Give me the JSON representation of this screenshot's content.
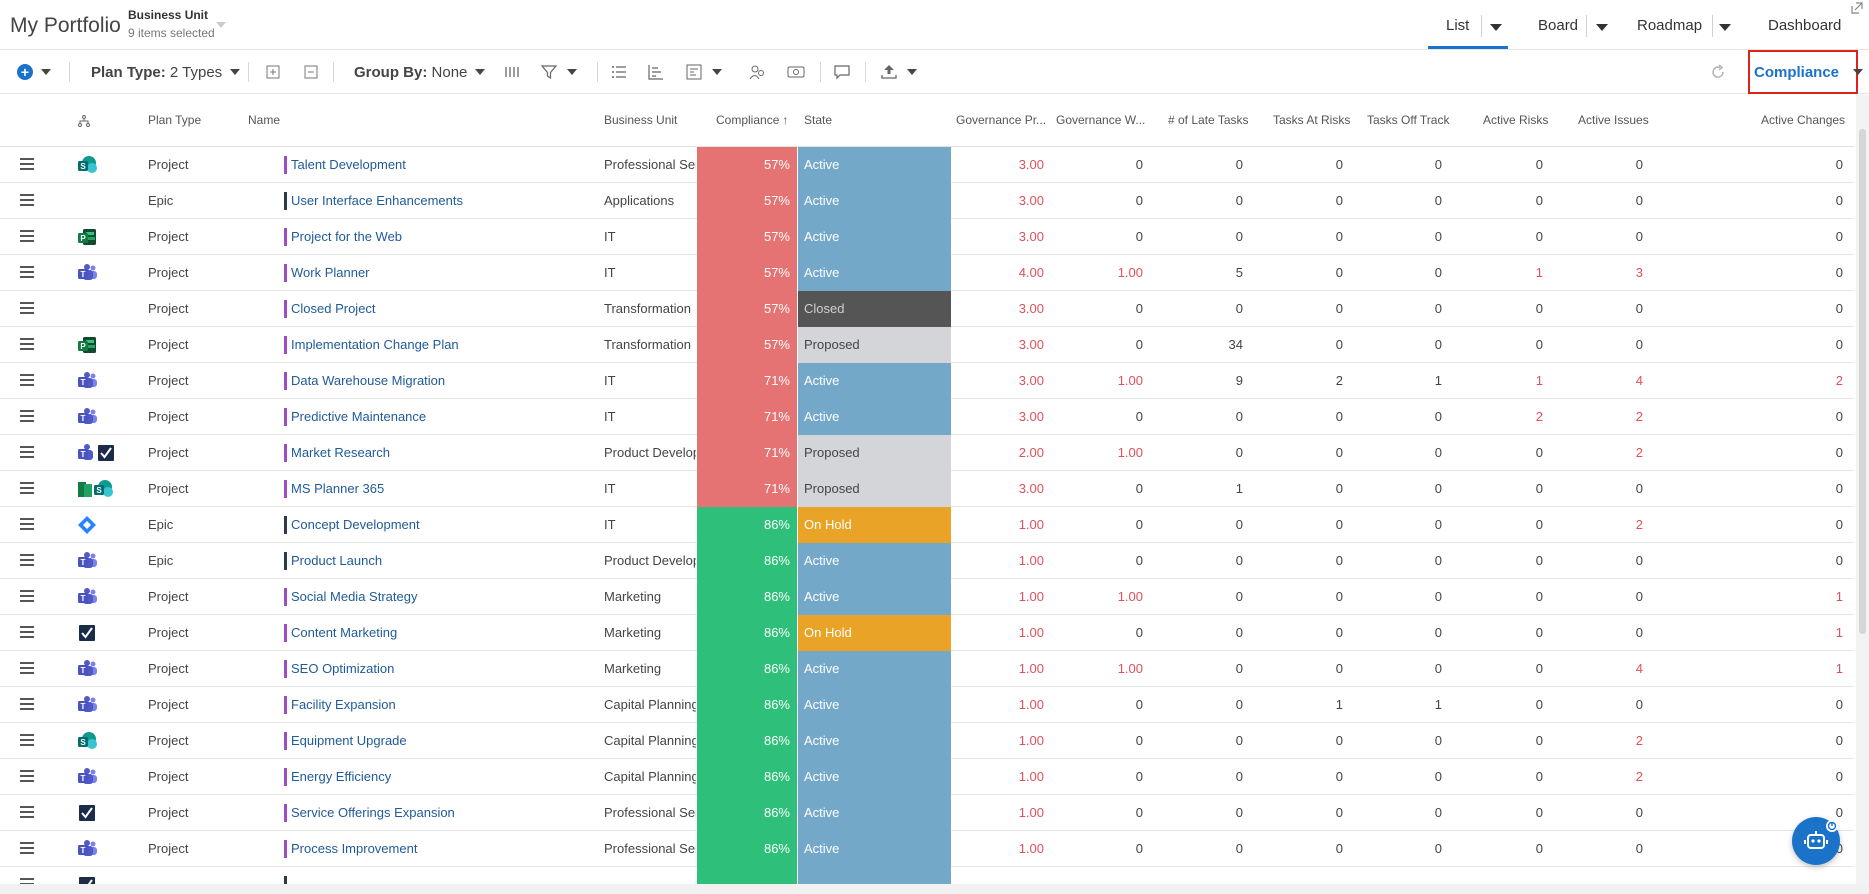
{
  "header": {
    "app_title": "My Portfolio",
    "business_unit_title": "Business Unit",
    "business_unit_sub": "9 items selected",
    "tabs": [
      {
        "label": "List"
      },
      {
        "label": "Board"
      },
      {
        "label": "Roadmap"
      },
      {
        "label": "Dashboard"
      }
    ]
  },
  "toolbar": {
    "plan_type_label": "Plan Type:",
    "plan_type_value": "2 Types",
    "group_by_label": "Group By:",
    "group_by_value": "None",
    "compliance_label": "Compliance"
  },
  "columns": {
    "plan_type": "Plan Type",
    "name": "Name",
    "business_unit": "Business Unit",
    "compliance": "Compliance",
    "state": "State",
    "gov_pr": "Governance Pr...",
    "gov_w": "Governance W...",
    "late_tasks": "# of Late Tasks",
    "tasks_at_risks": "Tasks At Risks",
    "tasks_off_track": "Tasks Off Track",
    "active_risks": "Active Risks",
    "active_issues": "Active Issues",
    "active_changes": "Active Changes"
  },
  "colors": {
    "compliance_low": "#e57373",
    "compliance_high": "#2ebf7a",
    "state_active": "#74a8c9",
    "state_closed": "#555555",
    "state_proposed": "#d3d5d9",
    "state_onhold": "#e9a326",
    "accent": "#1a73c8",
    "warn_red": "#e0505a"
  },
  "rows": [
    {
      "icon": "sharepoint-icon",
      "plan_type": "Project",
      "name": "Talent Development",
      "bar": "purple",
      "bu": "Professional Serv",
      "comp": "57%",
      "comp_level": "low",
      "state": "Active",
      "state_key": "active",
      "gov_pr": "3.00",
      "gov_w": "0",
      "late": "0",
      "at_risk": "0",
      "off_track": "0",
      "risks": "0",
      "issues": "0",
      "changes": "0"
    },
    {
      "icon": "",
      "plan_type": "Epic",
      "name": "User Interface Enhancements",
      "bar": "dark",
      "bu": "Applications",
      "comp": "57%",
      "comp_level": "low",
      "state": "Active",
      "state_key": "active",
      "gov_pr": "3.00",
      "gov_w": "0",
      "late": "0",
      "at_risk": "0",
      "off_track": "0",
      "risks": "0",
      "issues": "0",
      "changes": "0"
    },
    {
      "icon": "project-icon",
      "plan_type": "Project",
      "name": "Project for the Web",
      "bar": "purple",
      "bu": "IT",
      "comp": "57%",
      "comp_level": "low",
      "state": "Active",
      "state_key": "active",
      "gov_pr": "3.00",
      "gov_w": "0",
      "late": "0",
      "at_risk": "0",
      "off_track": "0",
      "risks": "0",
      "issues": "0",
      "changes": "0"
    },
    {
      "icon": "teams-icon",
      "plan_type": "Project",
      "name": "Work Planner",
      "bar": "purple",
      "bu": "IT",
      "comp": "57%",
      "comp_level": "low",
      "state": "Active",
      "state_key": "active",
      "gov_pr": "4.00",
      "gov_w": "1.00",
      "late": "5",
      "at_risk": "0",
      "off_track": "0",
      "risks": "1",
      "issues": "3",
      "changes": "0"
    },
    {
      "icon": "",
      "plan_type": "Project",
      "name": "Closed Project",
      "bar": "purple",
      "bu": "Transformation",
      "comp": "57%",
      "comp_level": "low",
      "state": "Closed",
      "state_key": "closed",
      "gov_pr": "3.00",
      "gov_w": "0",
      "late": "0",
      "at_risk": "0",
      "off_track": "0",
      "risks": "0",
      "issues": "0",
      "changes": "0"
    },
    {
      "icon": "project-icon",
      "plan_type": "Project",
      "name": "Implementation Change Plan",
      "bar": "purple",
      "bu": "Transformation",
      "comp": "57%",
      "comp_level": "low",
      "state": "Proposed",
      "state_key": "proposed",
      "gov_pr": "3.00",
      "gov_w": "0",
      "late": "34",
      "at_risk": "0",
      "off_track": "0",
      "risks": "0",
      "issues": "0",
      "changes": "0"
    },
    {
      "icon": "teams-icon",
      "plan_type": "Project",
      "name": "Data Warehouse Migration",
      "bar": "purple",
      "bu": "IT",
      "comp": "71%",
      "comp_level": "low",
      "state": "Active",
      "state_key": "active",
      "gov_pr": "3.00",
      "gov_w": "1.00",
      "late": "9",
      "at_risk": "2",
      "off_track": "1",
      "risks": "1",
      "issues": "4",
      "changes": "2"
    },
    {
      "icon": "teams-icon",
      "plan_type": "Project",
      "name": "Predictive Maintenance",
      "bar": "purple",
      "bu": "IT",
      "comp": "71%",
      "comp_level": "low",
      "state": "Active",
      "state_key": "active",
      "gov_pr": "3.00",
      "gov_w": "0",
      "late": "0",
      "at_risk": "0",
      "off_track": "0",
      "risks": "2",
      "issues": "2",
      "changes": "0"
    },
    {
      "icon": "teams-planner-icon",
      "plan_type": "Project",
      "name": "Market Research",
      "bar": "purple",
      "bu": "Product Develop",
      "comp": "71%",
      "comp_level": "low",
      "state": "Proposed",
      "state_key": "proposed",
      "gov_pr": "2.00",
      "gov_w": "1.00",
      "late": "0",
      "at_risk": "0",
      "off_track": "0",
      "risks": "0",
      "issues": "2",
      "changes": "0"
    },
    {
      "icon": "planner-sharepoint-icon",
      "plan_type": "Project",
      "name": "MS Planner 365",
      "bar": "purple",
      "bu": "IT",
      "comp": "71%",
      "comp_level": "low",
      "state": "Proposed",
      "state_key": "proposed",
      "gov_pr": "3.00",
      "gov_w": "0",
      "late": "1",
      "at_risk": "0",
      "off_track": "0",
      "risks": "0",
      "issues": "0",
      "changes": "0"
    },
    {
      "icon": "jira-icon",
      "plan_type": "Epic",
      "name": "Concept Development",
      "bar": "dark",
      "bu": "IT",
      "comp": "86%",
      "comp_level": "high",
      "state": "On Hold",
      "state_key": "onhold",
      "gov_pr": "1.00",
      "gov_w": "0",
      "late": "0",
      "at_risk": "0",
      "off_track": "0",
      "risks": "0",
      "issues": "2",
      "changes": "0"
    },
    {
      "icon": "teams-icon",
      "plan_type": "Epic",
      "name": "Product Launch",
      "bar": "dark",
      "bu": "Product Develop",
      "comp": "86%",
      "comp_level": "high",
      "state": "Active",
      "state_key": "active",
      "gov_pr": "1.00",
      "gov_w": "0",
      "late": "0",
      "at_risk": "0",
      "off_track": "0",
      "risks": "0",
      "issues": "0",
      "changes": "0"
    },
    {
      "icon": "teams-icon",
      "plan_type": "Project",
      "name": "Social Media Strategy",
      "bar": "purple",
      "bu": "Marketing",
      "comp": "86%",
      "comp_level": "high",
      "state": "Active",
      "state_key": "active",
      "gov_pr": "1.00",
      "gov_w": "1.00",
      "late": "0",
      "at_risk": "0",
      "off_track": "0",
      "risks": "0",
      "issues": "0",
      "changes": "1"
    },
    {
      "icon": "planner-check-icon",
      "plan_type": "Project",
      "name": "Content Marketing",
      "bar": "purple",
      "bu": "Marketing",
      "comp": "86%",
      "comp_level": "high",
      "state": "On Hold",
      "state_key": "onhold",
      "gov_pr": "1.00",
      "gov_w": "0",
      "late": "0",
      "at_risk": "0",
      "off_track": "0",
      "risks": "0",
      "issues": "0",
      "changes": "1"
    },
    {
      "icon": "teams-icon",
      "plan_type": "Project",
      "name": "SEO Optimization",
      "bar": "purple",
      "bu": "Marketing",
      "comp": "86%",
      "comp_level": "high",
      "state": "Active",
      "state_key": "active",
      "gov_pr": "1.00",
      "gov_w": "1.00",
      "late": "0",
      "at_risk": "0",
      "off_track": "0",
      "risks": "0",
      "issues": "4",
      "changes": "1"
    },
    {
      "icon": "teams-icon",
      "plan_type": "Project",
      "name": "Facility Expansion",
      "bar": "purple",
      "bu": "Capital Planning",
      "comp": "86%",
      "comp_level": "high",
      "state": "Active",
      "state_key": "active",
      "gov_pr": "1.00",
      "gov_w": "0",
      "late": "0",
      "at_risk": "1",
      "off_track": "1",
      "risks": "0",
      "issues": "0",
      "changes": "0"
    },
    {
      "icon": "sharepoint-icon",
      "plan_type": "Project",
      "name": "Equipment Upgrade",
      "bar": "purple",
      "bu": "Capital Planning",
      "comp": "86%",
      "comp_level": "high",
      "state": "Active",
      "state_key": "active",
      "gov_pr": "1.00",
      "gov_w": "0",
      "late": "0",
      "at_risk": "0",
      "off_track": "0",
      "risks": "0",
      "issues": "2",
      "changes": "0"
    },
    {
      "icon": "teams-icon",
      "plan_type": "Project",
      "name": "Energy Efficiency",
      "bar": "purple",
      "bu": "Capital Planning",
      "comp": "86%",
      "comp_level": "high",
      "state": "Active",
      "state_key": "active",
      "gov_pr": "1.00",
      "gov_w": "0",
      "late": "0",
      "at_risk": "0",
      "off_track": "0",
      "risks": "0",
      "issues": "2",
      "changes": "0"
    },
    {
      "icon": "planner-check-icon",
      "plan_type": "Project",
      "name": "Service Offerings Expansion",
      "bar": "purple",
      "bu": "Professional Serv",
      "comp": "86%",
      "comp_level": "high",
      "state": "Active",
      "state_key": "active",
      "gov_pr": "1.00",
      "gov_w": "0",
      "late": "0",
      "at_risk": "0",
      "off_track": "0",
      "risks": "0",
      "issues": "0",
      "changes": "0"
    },
    {
      "icon": "teams-icon",
      "plan_type": "Project",
      "name": "Process Improvement",
      "bar": "purple",
      "bu": "Professional Serv",
      "comp": "86%",
      "comp_level": "high",
      "state": "Active",
      "state_key": "active",
      "gov_pr": "1.00",
      "gov_w": "0",
      "late": "0",
      "at_risk": "0",
      "off_track": "0",
      "risks": "0",
      "issues": "0",
      "changes": "0"
    }
  ],
  "partial_row": {
    "icon": "planner-check-icon",
    "bar": "dark",
    "comp_level": "high",
    "state_key": "active"
  }
}
